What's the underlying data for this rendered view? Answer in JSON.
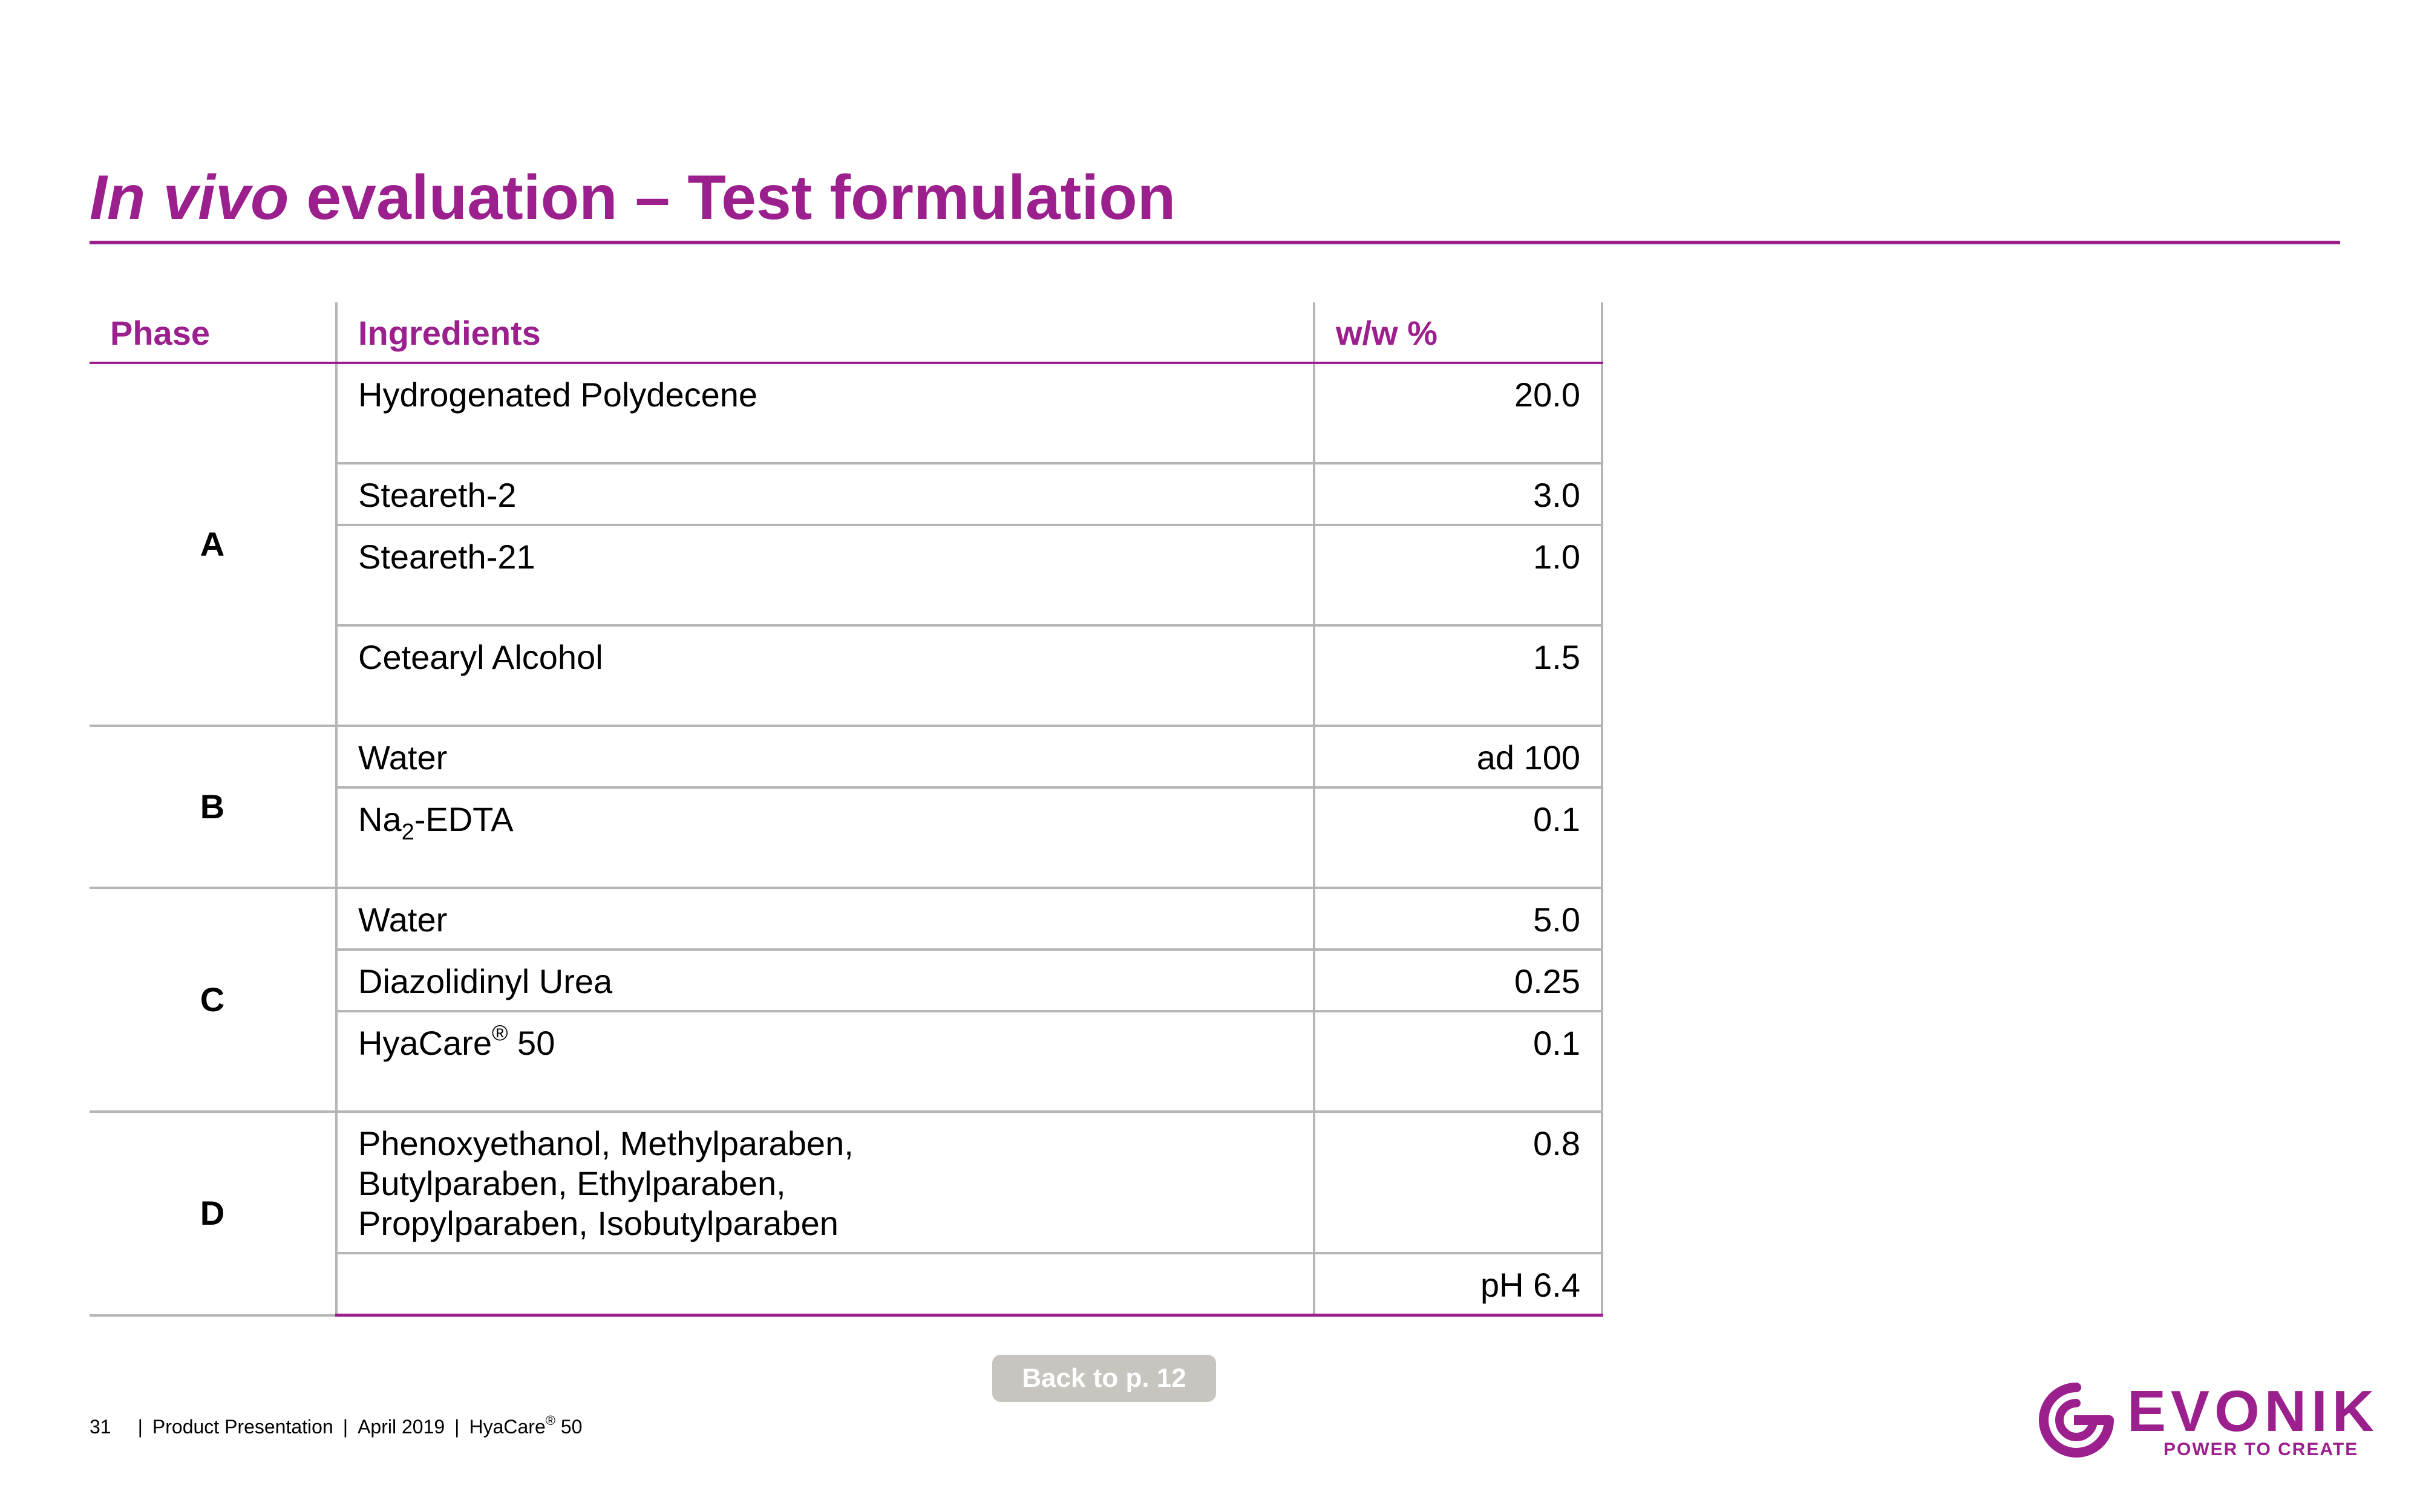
{
  "title": {
    "italic": "In vivo",
    "rest": "evaluation – Test formulation"
  },
  "table": {
    "headers": {
      "phase": "Phase",
      "ingredients": "Ingredients",
      "ww": "w/w %"
    },
    "phases": {
      "a": "A",
      "b": "B",
      "c": "C",
      "d": "D"
    },
    "rows": [
      {
        "ingredient": "Hydrogenated Polydecene",
        "value": "20.0"
      },
      {
        "ingredient": "Steareth-2",
        "value": "3.0"
      },
      {
        "ingredient": "Steareth-21",
        "value": "1.0"
      },
      {
        "ingredient": "Cetearyl Alcohol",
        "value": "1.5"
      },
      {
        "ingredient": "Water",
        "value": "ad 100"
      },
      {
        "ingredient_prefix": "Na",
        "ingredient_sub": "2",
        "ingredient_suffix": "-EDTA",
        "value": "0.1"
      },
      {
        "ingredient": "Water",
        "value": "5.0"
      },
      {
        "ingredient": "Diazolidinyl Urea",
        "value": "0.25"
      },
      {
        "ingredient_prefix": "HyaCare",
        "ingredient_sup": "®",
        "ingredient_suffix": " 50",
        "value": "0.1"
      },
      {
        "ingredient_lines": [
          "Phenoxyethanol, Methylparaben,",
          "Butylparaben, Ethylparaben,",
          "Propylparaben, Isobutylparaben"
        ],
        "value": "0.8"
      },
      {
        "ingredient": "",
        "value": "pH 6.4"
      }
    ]
  },
  "back_button": "Back to p. 12",
  "footer": {
    "page_number": "31",
    "doc_type": "Product Presentation",
    "date": "April 2019",
    "product_prefix": "HyaCare",
    "product_sup": "®",
    "product_suffix": " 50"
  },
  "logo": {
    "wordmark": "EVONIK",
    "tagline": "POWER TO CREATE"
  },
  "colors": {
    "accent": "#9b1f8c",
    "grid": "#b5b5b5",
    "button_bg": "#c8c4c0"
  }
}
